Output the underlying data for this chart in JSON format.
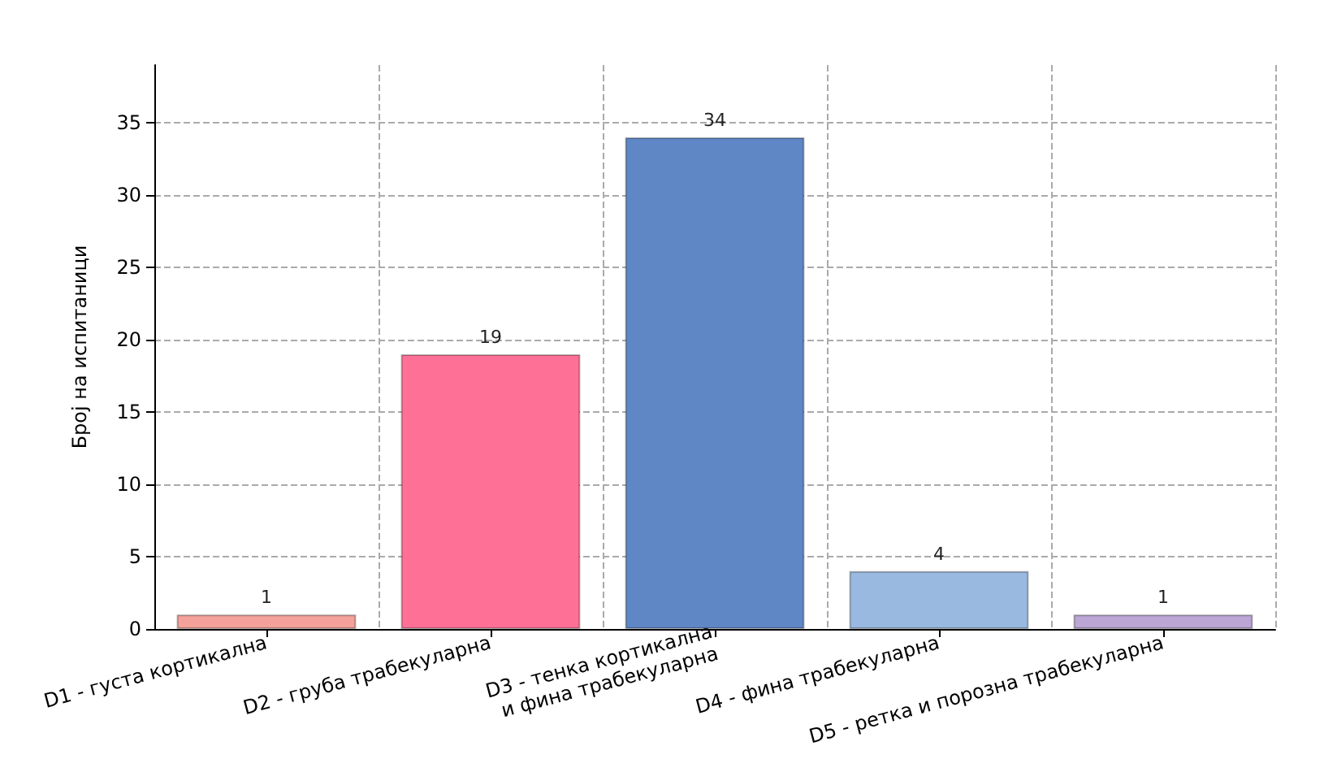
{
  "chart_data": {
    "type": "bar",
    "ylabel": "Број на испитаници",
    "categories": [
      "D1 - густа кортикална",
      "D2 - груба трабекуларна",
      "D3 - тенка кортикална\nи фина трабекуларна",
      "D4 - фина трабекуларна",
      "D5 - ретка и порозна трабекуларна"
    ],
    "values": [
      1,
      19,
      34,
      4,
      1
    ],
    "colors": [
      "#f4a19a",
      "#ff7096",
      "#5f87c6",
      "#99b9e0",
      "#bba6d6"
    ],
    "ylim": [
      0,
      39
    ],
    "yticks": [
      0,
      5,
      10,
      15,
      20,
      25,
      30,
      35
    ],
    "grid": true,
    "data_labels": true
  }
}
